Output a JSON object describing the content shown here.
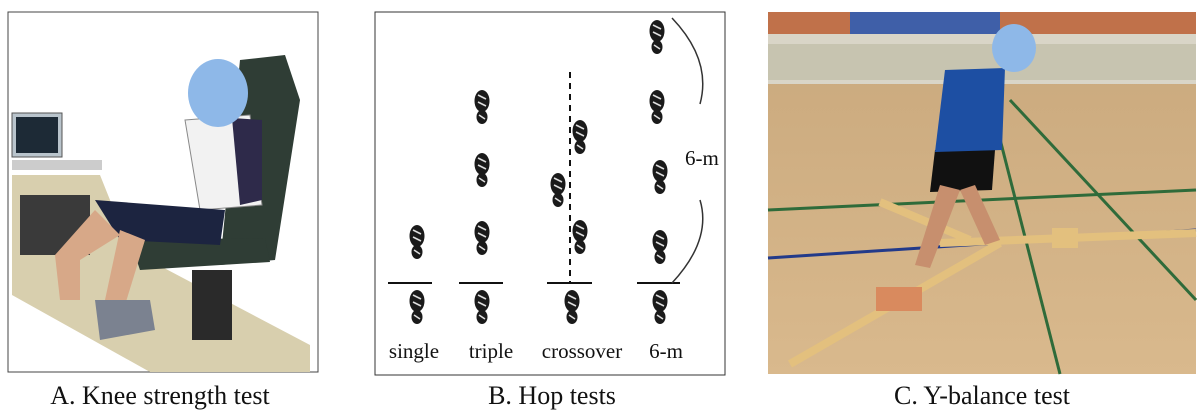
{
  "panels": [
    {
      "caption": "A. Knee strength test"
    },
    {
      "caption": "B. Hop tests",
      "labels": [
        "single",
        "triple",
        "crossover",
        "6-m"
      ],
      "distance_label": "6-m"
    },
    {
      "caption": "C. Y-balance test"
    }
  ]
}
